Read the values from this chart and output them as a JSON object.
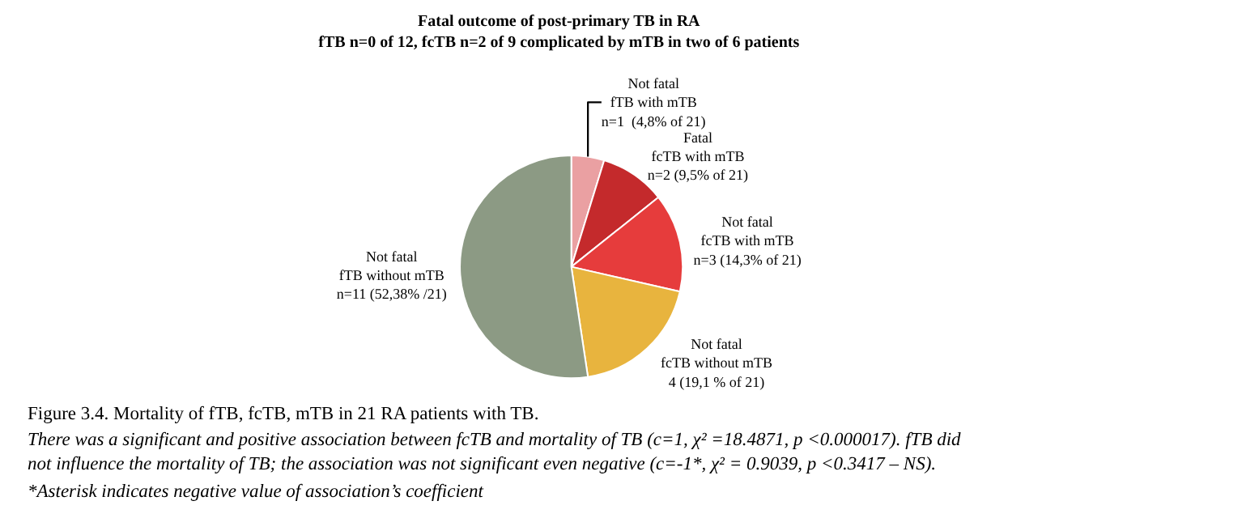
{
  "chart_data": {
    "type": "pie",
    "title": "Fatal outcome of post-primary TB in RA",
    "subtitle": "fTB n=0 of 12, fcTB n=2 of 9 complicated by mTB in two of 6 patients",
    "categories": [
      "Not fatal\nfTB with mTB",
      "Fatal\nfcTB with mTB",
      "Not fatal\nfcTB with mTB",
      "Not fatal\nfcTB without mTB",
      "Not fatal\nfTB without mTB"
    ],
    "value_labels": [
      "n=1  (4,8% of 21)",
      "n=2 (9,5% of 21)",
      "n=3 (14,3% of 21)",
      "4 (19,1 % of 21)",
      "n=11 (52,38% /21)"
    ],
    "values": [
      1,
      2,
      3,
      4,
      11
    ],
    "colors": [
      "#eaa0a2",
      "#c42a2c",
      "#e63c3c",
      "#e8b43e",
      "#8c9a84"
    ],
    "legend": false,
    "annotations": [
      "Figure 3.4. Mortality of fTB, fcTB, mTB in 21 RA patients with TB.",
      "There was a significant and positive association between fcTB and mortality of TB (c=1, χ² =18.4871, p <0.000017). fTB did\nnot influence the mortality of TB; the association was not significant even negative (c=-1*, χ² = 0.9039, p <0.3417 – NS).",
      "*Asterisk indicates negative value of association’s coefficient"
    ]
  }
}
